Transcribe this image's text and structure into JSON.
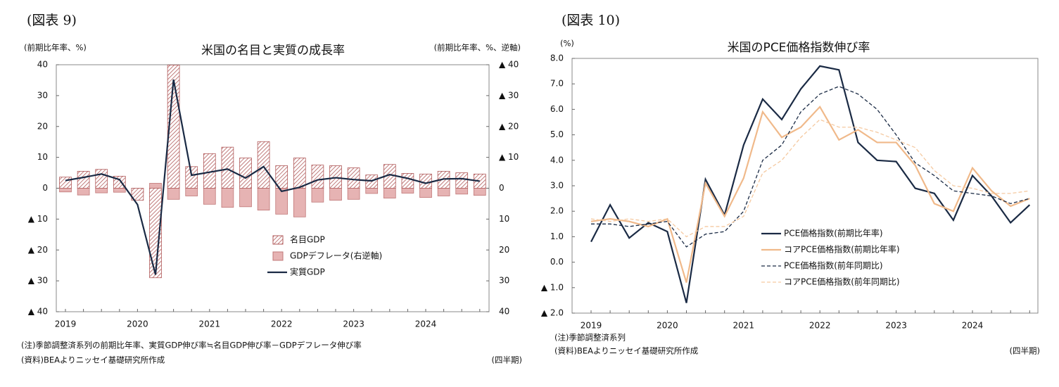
{
  "chart_data": [
    {
      "type": "bar",
      "figure_label": "(図表 9)",
      "title": "米国の名目と実質の成長率",
      "y_label": "(前期比年率、%)",
      "y2_label": "(前期比年率、%、逆軸)",
      "x_label": "(四半期)",
      "notes": [
        "(注)季節調整済系列の前期比年率、実質GDP伸び率≒名目GDP伸び率－GDPデフレータ伸び率",
        "(資料)BEAよりニッセイ基礎研究所作成"
      ],
      "categories": [
        "2019",
        null,
        null,
        null,
        "2020",
        null,
        null,
        null,
        "2021",
        null,
        null,
        null,
        "2022",
        null,
        null,
        null,
        "2023",
        null,
        null,
        null,
        "2024",
        null,
        null,
        null
      ],
      "ylim": [
        -40,
        40
      ],
      "yticks": [
        40,
        30,
        20,
        10,
        0,
        {
          "value": -10,
          "label": "▲ 10"
        },
        {
          "value": -20,
          "label": "▲ 20"
        },
        {
          "value": -30,
          "label": "▲ 30"
        },
        {
          "value": -40,
          "label": "▲ 40"
        }
      ],
      "y2lim": [
        40,
        -40
      ],
      "y2ticks": [
        {
          "value": -40,
          "label": "▲ 40"
        },
        {
          "value": -30,
          "label": "▲ 30"
        },
        {
          "value": -20,
          "label": "▲ 20"
        },
        {
          "value": -10,
          "label": "▲ 10"
        },
        0,
        10,
        20,
        30,
        40
      ],
      "grid": false,
      "legend": "center right",
      "series": [
        {
          "name": "名目GDP",
          "kind": "bar",
          "style": "hatch",
          "color": "#b05a5a",
          "values": [
            3.6,
            5.5,
            6.1,
            3.9,
            -3.9,
            -29,
            39.9,
            7,
            11.2,
            13.3,
            9.8,
            15.1,
            7.3,
            9.8,
            7.5,
            7.3,
            6.6,
            4.3,
            7.7,
            4.8,
            4.6,
            5.5,
            5.0,
            4.6
          ]
        },
        {
          "name": "GDPデフレータ(右逆軸)",
          "kind": "bar",
          "style": "solid",
          "axis": "y2",
          "color": "#e6b3b3",
          "values": [
            1.2,
            2.2,
            1.5,
            1.3,
            1.5,
            -1.6,
            3.6,
            2.5,
            5.2,
            6.2,
            6.0,
            7.1,
            8.4,
            9.3,
            4.5,
            3.9,
            3.6,
            1.7,
            3.2,
            1.6,
            3.0,
            2.5,
            1.9,
            2.3
          ]
        },
        {
          "name": "実質GDP",
          "kind": "line",
          "style": "solid",
          "color": "#1a2a44",
          "values": [
            2.5,
            3.5,
            4.6,
            2.8,
            -5.3,
            -28,
            35.2,
            4.2,
            5.2,
            6.2,
            3.3,
            7.0,
            -1.0,
            0.3,
            2.7,
            3.4,
            2.8,
            2.4,
            4.4,
            3.2,
            1.6,
            3.0,
            3.1,
            2.3
          ]
        }
      ]
    },
    {
      "type": "line",
      "figure_label": "(図表 10)",
      "title": "米国のPCE価格指数伸び率",
      "y_label": "(%)",
      "x_label": "(四半期)",
      "notes": [
        "(注)季節調整済系列",
        "(資料)BEAよりニッセイ基礎研究所作成"
      ],
      "categories": [
        "2019",
        null,
        null,
        null,
        "2020",
        null,
        null,
        null,
        "2021",
        null,
        null,
        null,
        "2022",
        null,
        null,
        null,
        "2023",
        null,
        null,
        null,
        "2024",
        null,
        null,
        null
      ],
      "ylim": [
        -2,
        8
      ],
      "yticks": [
        {
          "value": 8,
          "label": "8.0"
        },
        {
          "value": 7,
          "label": "7.0"
        },
        {
          "value": 6,
          "label": "6.0"
        },
        {
          "value": 5,
          "label": "5.0"
        },
        {
          "value": 4,
          "label": "4.0"
        },
        {
          "value": 3,
          "label": "3.0"
        },
        {
          "value": 2,
          "label": "2.0"
        },
        {
          "value": 1,
          "label": "1.0"
        },
        {
          "value": 0,
          "label": "0.0"
        },
        {
          "value": -1,
          "label": "▲ 1.0"
        },
        {
          "value": -2,
          "label": "▲ 2.0"
        }
      ],
      "grid": false,
      "legend": "lower center",
      "series": [
        {
          "name": "PCE価格指数(前期比年率)",
          "style": "solid",
          "color": "#1a2a44",
          "values": [
            0.8,
            2.25,
            0.95,
            1.55,
            1.2,
            -1.6,
            3.25,
            1.85,
            4.6,
            6.4,
            5.6,
            6.8,
            7.7,
            7.55,
            4.7,
            4.0,
            3.95,
            2.9,
            2.7,
            1.65,
            3.4,
            2.6,
            1.55,
            2.25
          ]
        },
        {
          "name": "コアPCE価格指数(前期比年率)",
          "style": "solid",
          "color": "#f0b98a",
          "values": [
            1.6,
            1.7,
            1.6,
            1.4,
            1.7,
            -0.8,
            3.1,
            1.8,
            3.3,
            5.9,
            4.9,
            5.3,
            6.1,
            4.8,
            5.2,
            4.7,
            4.7,
            3.8,
            2.3,
            2.0,
            3.7,
            2.8,
            2.2,
            2.5
          ]
        },
        {
          "name": "PCE価格指数(前年同期比)",
          "style": "dashed",
          "color": "#1a2a44",
          "values": [
            1.5,
            1.5,
            1.4,
            1.5,
            1.6,
            0.6,
            1.1,
            1.2,
            2.0,
            4.0,
            4.6,
            5.9,
            6.6,
            6.9,
            6.6,
            6.0,
            5.0,
            3.9,
            3.4,
            2.8,
            2.7,
            2.6,
            2.3,
            2.5
          ]
        },
        {
          "name": "コアPCE価格指数(前年同期比)",
          "style": "dashed",
          "color": "#f5c9a0",
          "values": [
            1.7,
            1.6,
            1.7,
            1.6,
            1.7,
            1.0,
            1.4,
            1.4,
            1.8,
            3.5,
            4.0,
            4.9,
            5.6,
            5.3,
            5.3,
            5.1,
            4.8,
            4.5,
            3.6,
            3.0,
            2.9,
            2.7,
            2.7,
            2.8
          ]
        }
      ]
    }
  ]
}
